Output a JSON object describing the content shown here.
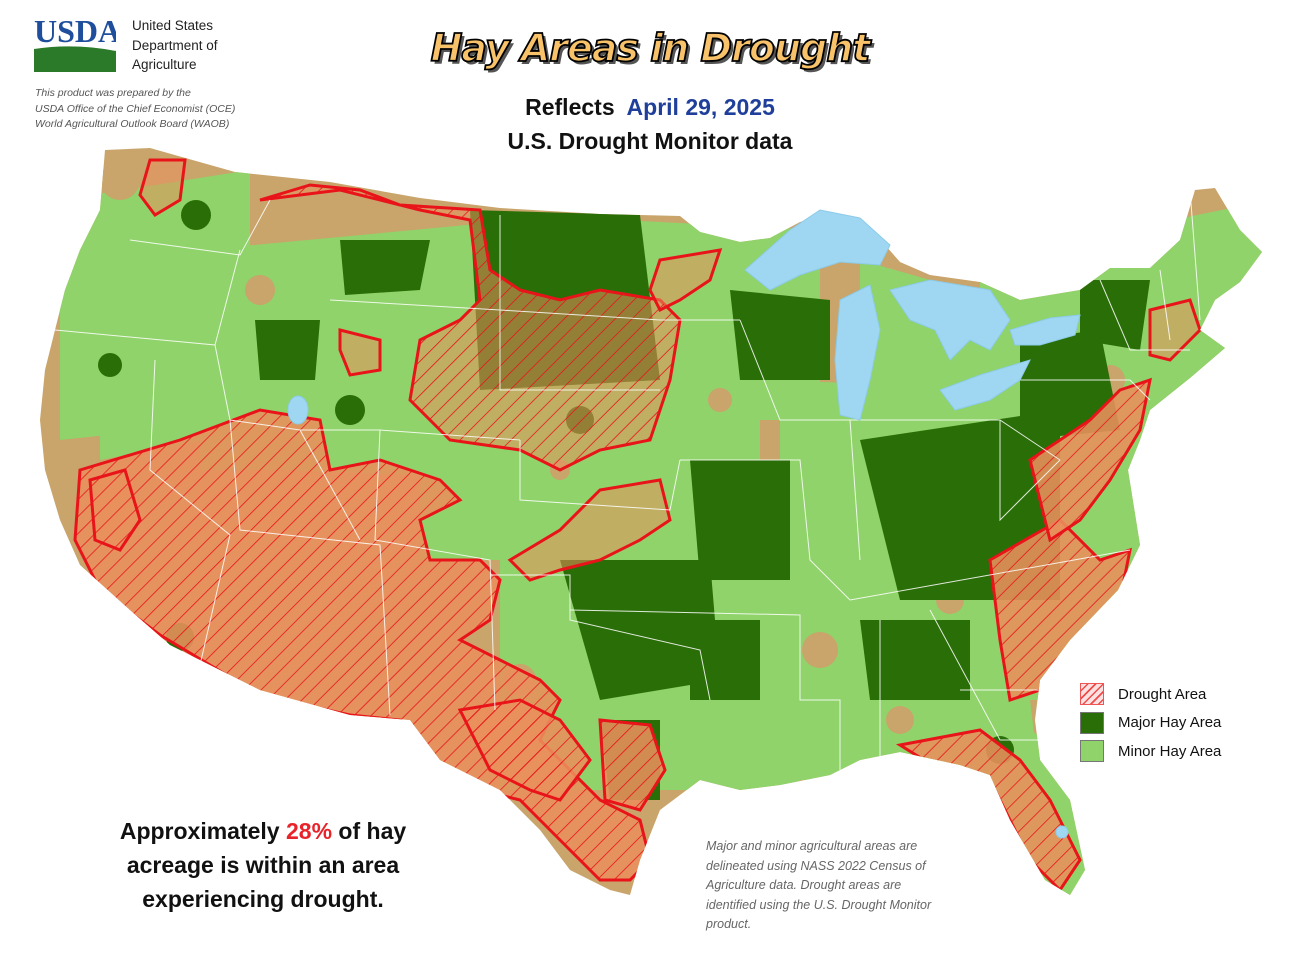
{
  "header": {
    "logo_text": "USDA",
    "agency_lines": [
      "United States",
      "Department of",
      "Agriculture"
    ],
    "credit_lines": [
      "This product was prepared by the",
      "USDA Office of the Chief Economist (OCE)",
      "World Agricultural Outlook Board (WAOB)"
    ]
  },
  "title": "Hay Areas in Drought",
  "subtitle": {
    "reflects": "Reflects",
    "date": "April 29, 2025",
    "source": "U.S. Drought Monitor data"
  },
  "stat": {
    "prefix": "Approximately",
    "percent": "28%",
    "suffix_1": "of hay",
    "line_2": "acreage is within an area",
    "line_3": "experiencing drought."
  },
  "note": {
    "lines": [
      "Major and minor agricultural areas are",
      "delineated using NASS 2022 Census of",
      "Agriculture data.  Drought areas are",
      "identified using the U.S. Drought Monitor",
      "product."
    ]
  },
  "legend": {
    "items": [
      {
        "label": "Drought Area",
        "swatch": "hatch"
      },
      {
        "label": "Major Hay Area",
        "color": "#2a6e07"
      },
      {
        "label": "Minor Hay Area",
        "color": "#8fd36a"
      }
    ]
  },
  "colors": {
    "base_land": "#c9a46b",
    "minor_hay": "#8fd36a",
    "major_hay": "#2a6e07",
    "drought_fill": "#e98f5c",
    "drought_outline": "#e8141a",
    "water": "#9fd7f2",
    "usda_blue": "#1f4f9c",
    "usda_green": "#2a7a2a"
  }
}
